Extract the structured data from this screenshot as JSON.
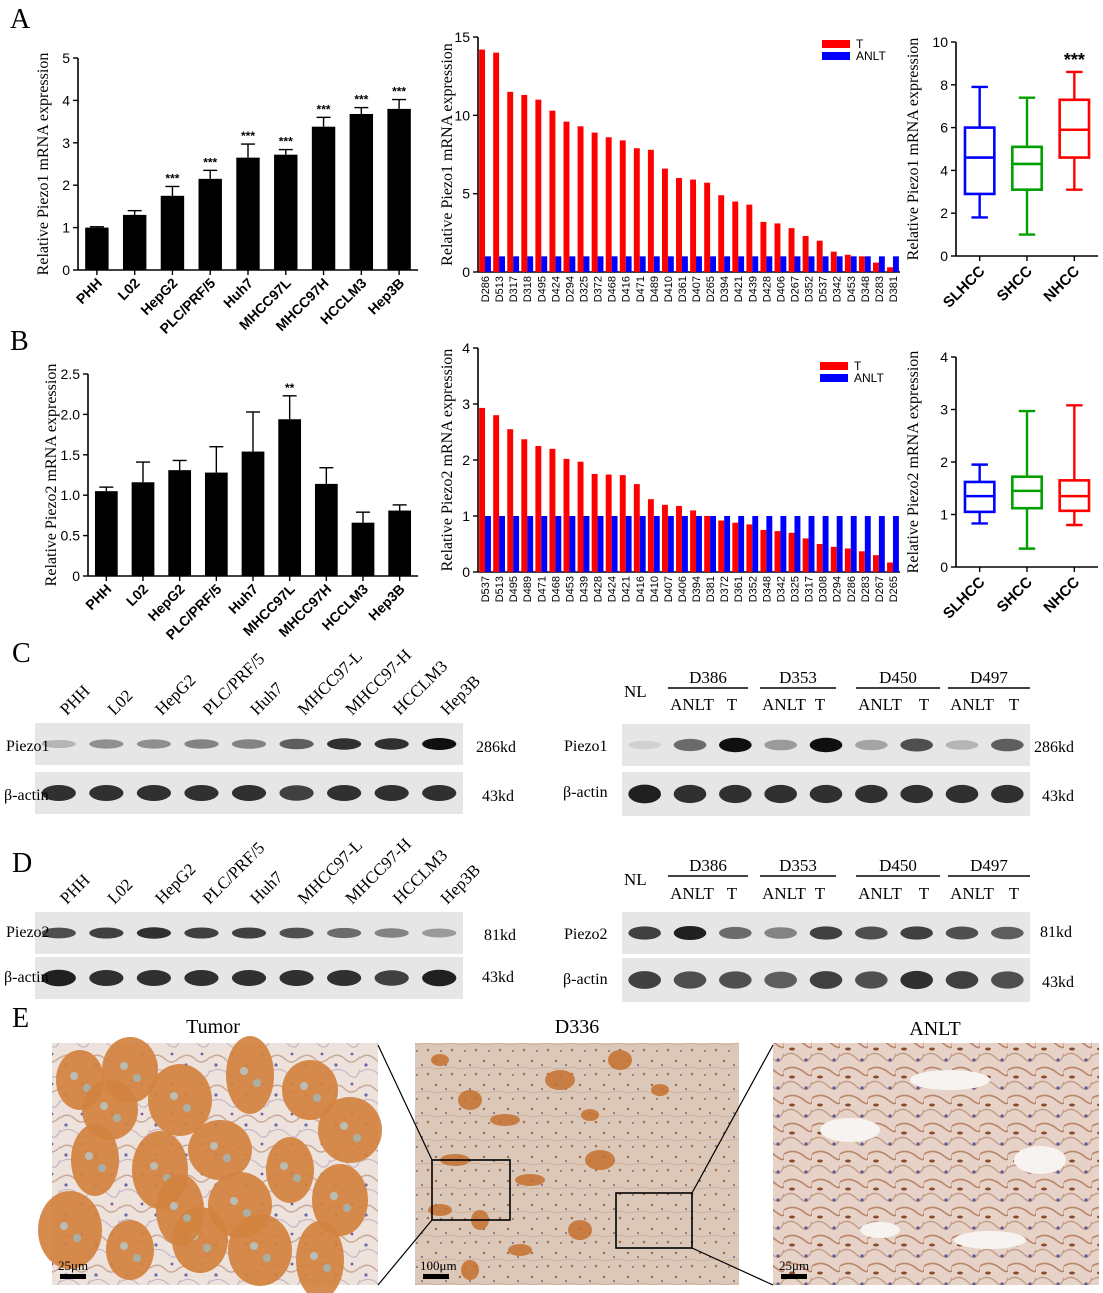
{
  "panels": {
    "A": "A",
    "B": "B",
    "C": "C",
    "D": "D",
    "E": "E"
  },
  "sig": {
    "three": "***",
    "two": "**"
  },
  "chart_data": [
    {
      "id": "A1",
      "type": "bar",
      "title": "",
      "ylabel": "Relative Piezo1 mRNA expression",
      "ylim": [
        0,
        5
      ],
      "yticks": [
        "0",
        "1",
        "2",
        "3",
        "4",
        "5"
      ],
      "categories": [
        "PHH",
        "L02",
        "HepG2",
        "PLC/PRF/5",
        "Huh7",
        "MHCC97L",
        "MHCC97H",
        "HCCLM3",
        "Hep3B"
      ],
      "values": [
        1.0,
        1.3,
        1.75,
        2.15,
        2.65,
        2.72,
        3.38,
        3.68,
        3.8
      ],
      "errors": [
        0.02,
        0.1,
        0.22,
        0.2,
        0.32,
        0.12,
        0.22,
        0.15,
        0.22
      ],
      "significance": [
        "",
        "",
        "***",
        "***",
        "***",
        "***",
        "***",
        "***",
        "***"
      ]
    },
    {
      "id": "A2",
      "type": "bar",
      "ylabel": "Relative Piezo1 mRNA expression",
      "ylim": [
        0,
        15
      ],
      "yticks": [
        "0",
        "5",
        "10",
        "15"
      ],
      "legend": [
        "T",
        "ANLT"
      ],
      "categories": [
        "D286",
        "D513",
        "D317",
        "D318",
        "D495",
        "D424",
        "D294",
        "D325",
        "D372",
        "D468",
        "D416",
        "D471",
        "D489",
        "D410",
        "D361",
        "D407",
        "D265",
        "D394",
        "D421",
        "D439",
        "D428",
        "D406",
        "D267",
        "D352",
        "D537",
        "D342",
        "D453",
        "D348",
        "D283",
        "D381"
      ],
      "series": [
        {
          "name": "T",
          "color": "#ff0000",
          "values": [
            14.2,
            14.0,
            11.5,
            11.3,
            11.0,
            10.3,
            9.6,
            9.3,
            8.9,
            8.6,
            8.4,
            7.9,
            7.8,
            6.6,
            6.0,
            5.9,
            5.7,
            4.9,
            4.5,
            4.3,
            3.2,
            3.1,
            2.8,
            2.3,
            2.0,
            1.3,
            1.1,
            1.0,
            0.6,
            0.3
          ]
        },
        {
          "name": "ANLT",
          "color": "#0000ff",
          "values": [
            1,
            1,
            1,
            1,
            1,
            1,
            1,
            1,
            1,
            1,
            1,
            1,
            1,
            1,
            1,
            1,
            1,
            1,
            1,
            1,
            1,
            1,
            1,
            1,
            1,
            1,
            1,
            1,
            1,
            1
          ]
        }
      ]
    },
    {
      "id": "A3",
      "type": "box",
      "ylabel": "Relative Piezo1 mRNA expression",
      "ylim": [
        0,
        10
      ],
      "yticks": [
        "0",
        "2",
        "4",
        "6",
        "8",
        "10"
      ],
      "categories": [
        "SLHCC",
        "SHCC",
        "NHCC"
      ],
      "colors": [
        "#0000ff",
        "#00a000",
        "#ff0000"
      ],
      "boxes": [
        {
          "min": 1.8,
          "q1": 2.9,
          "median": 4.6,
          "q3": 6.0,
          "max": 7.9
        },
        {
          "min": 1.0,
          "q1": 3.1,
          "median": 4.3,
          "q3": 5.1,
          "max": 7.4
        },
        {
          "min": 3.1,
          "q1": 4.6,
          "median": 5.9,
          "q3": 7.3,
          "max": 8.6
        }
      ],
      "significance": [
        "",
        "",
        "***"
      ]
    },
    {
      "id": "B1",
      "type": "bar",
      "ylabel": "Relative Piezo2 mRNA expression",
      "ylim": [
        0,
        2.5
      ],
      "yticks": [
        "0",
        "0.5",
        "1.0",
        "1.5",
        "2.0",
        "2.5"
      ],
      "categories": [
        "PHH",
        "L02",
        "HepG2",
        "PLC/PRF/5",
        "Huh7",
        "MHCC97L",
        "MHCC97H",
        "HCCLM3",
        "Hep3B"
      ],
      "values": [
        1.05,
        1.16,
        1.31,
        1.28,
        1.54,
        1.94,
        1.14,
        0.66,
        0.81
      ],
      "errors": [
        0.05,
        0.25,
        0.12,
        0.32,
        0.49,
        0.29,
        0.2,
        0.13,
        0.07
      ],
      "significance": [
        "",
        "",
        "",
        "",
        "",
        "**",
        "",
        "",
        ""
      ]
    },
    {
      "id": "B2",
      "type": "bar",
      "ylabel": "Relative Piezo2 mRNA expression",
      "ylim": [
        0,
        4
      ],
      "yticks": [
        "0",
        "1",
        "2",
        "3",
        "4"
      ],
      "legend": [
        "T",
        "ANLT"
      ],
      "categories": [
        "D537",
        "D513",
        "D495",
        "D489",
        "D471",
        "D468",
        "D453",
        "D439",
        "D428",
        "D424",
        "D421",
        "D416",
        "D410",
        "D407",
        "D406",
        "D394",
        "D381",
        "D372",
        "D361",
        "D352",
        "D348",
        "D342",
        "D325",
        "D317",
        "D308",
        "D294",
        "D286",
        "D283",
        "D267",
        "D265"
      ],
      "series": [
        {
          "name": "T",
          "color": "#ff0000",
          "values": [
            2.93,
            2.8,
            2.55,
            2.37,
            2.25,
            2.2,
            2.02,
            1.97,
            1.75,
            1.74,
            1.73,
            1.57,
            1.3,
            1.2,
            1.18,
            1.1,
            1.0,
            0.92,
            0.88,
            0.85,
            0.75,
            0.73,
            0.7,
            0.6,
            0.5,
            0.45,
            0.42,
            0.37,
            0.3,
            0.17
          ]
        },
        {
          "name": "ANLT",
          "color": "#0000ff",
          "values": [
            1,
            1,
            1,
            1,
            1,
            1,
            1,
            1,
            1,
            1,
            1,
            1,
            1,
            1,
            1,
            1,
            1,
            1,
            1,
            1,
            1,
            1,
            1,
            1,
            1,
            1,
            1,
            1,
            1,
            1
          ]
        }
      ]
    },
    {
      "id": "B3",
      "type": "box",
      "ylabel": "Relative Piezo2 mRNA expression",
      "ylim": [
        0,
        4
      ],
      "yticks": [
        "0",
        "1",
        "2",
        "3",
        "4"
      ],
      "categories": [
        "SLHCC",
        "SHCC",
        "NHCC"
      ],
      "colors": [
        "#0000ff",
        "#00a000",
        "#ff0000"
      ],
      "boxes": [
        {
          "min": 0.83,
          "q1": 1.05,
          "median": 1.35,
          "q3": 1.62,
          "max": 1.95
        },
        {
          "min": 0.35,
          "q1": 1.12,
          "median": 1.45,
          "q3": 1.72,
          "max": 2.97
        },
        {
          "min": 0.8,
          "q1": 1.07,
          "median": 1.35,
          "q3": 1.65,
          "max": 3.08
        }
      ],
      "significance": [
        "",
        "",
        ""
      ]
    }
  ],
  "blots": {
    "cell_lanes": [
      "PHH",
      "L02",
      "HepG2",
      "PLC/PRF/5",
      "Huh7",
      "MHCC97-L",
      "MHCC97-H",
      "HCCLM3",
      "Hep3B"
    ],
    "tissue_nl": "NL",
    "tissue_groups": [
      "D386",
      "D353",
      "D450",
      "D497"
    ],
    "anlt": "ANLT",
    "t": "T",
    "c_target": "Piezo1",
    "c_target_kd": "286kd",
    "d_target": "Piezo2",
    "d_target_kd": "81kd",
    "actin": "β-actin",
    "actin_kd": "43kd",
    "c_cell_intensity": [
      0.35,
      0.55,
      0.55,
      0.6,
      0.6,
      0.75,
      0.9,
      0.9,
      1.0
    ],
    "c_tissue_intensity": [
      0.15,
      0.7,
      1.0,
      0.5,
      1.0,
      0.45,
      0.8,
      0.35,
      0.75
    ],
    "d_cell_intensity": [
      0.8,
      0.85,
      0.9,
      0.85,
      0.85,
      0.8,
      0.7,
      0.6,
      0.5
    ],
    "d_tissue_intensity": [
      0.85,
      0.95,
      0.7,
      0.6,
      0.85,
      0.8,
      0.85,
      0.8,
      0.75
    ]
  },
  "ihc": {
    "left_title": "Tumor",
    "mid_title": "D336",
    "right_title": "ANLT",
    "scale_left": "25μm",
    "scale_mid": "100μm",
    "scale_right": "25μm"
  }
}
